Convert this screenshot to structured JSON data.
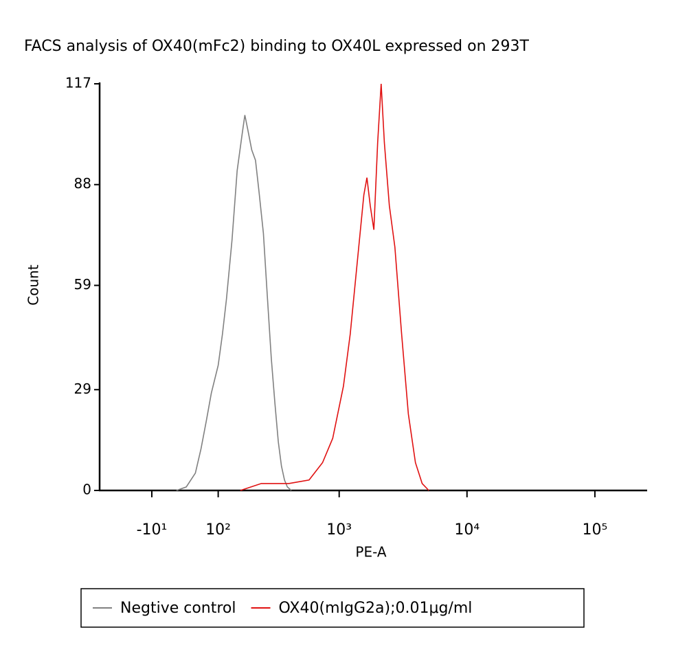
{
  "chart_data": {
    "type": "line",
    "title": "FACS analysis of OX40(mFc2) binding to OX40L expressed on 293T",
    "x_label": "PE-A",
    "y_label": "Count",
    "xscale": "biexponential",
    "xlim": [
      -100,
      250000
    ],
    "xticks": [
      {
        "value": -10,
        "label": "-10¹"
      },
      {
        "value": 100,
        "label": "10²"
      },
      {
        "value": 1000,
        "label": "10³"
      },
      {
        "value": 10000,
        "label": "10⁴"
      },
      {
        "value": 100000,
        "label": "10⁵"
      }
    ],
    "ylim": [
      0,
      117
    ],
    "yticks": [
      0,
      29,
      59,
      88,
      117
    ],
    "legend": "bottom",
    "series": [
      {
        "name": "Negtive control",
        "color": "#808080",
        "x": [
          25,
          40,
          55,
          65,
          75,
          85,
          100,
          110,
          120,
          135,
          150,
          165,
          175,
          185,
          200,
          215,
          230,
          250,
          270,
          290,
          310,
          330,
          350,
          370,
          390,
          420
        ],
        "values": [
          0,
          1,
          5,
          12,
          20,
          28,
          36,
          45,
          55,
          72,
          92,
          102,
          108,
          104,
          98,
          95,
          86,
          74,
          55,
          38,
          25,
          14,
          7,
          3,
          1,
          0
        ]
      },
      {
        "name": "OX40(mIgG2a);0.01μg/ml",
        "color": "#e01010",
        "x": [
          160,
          240,
          400,
          580,
          740,
          890,
          1080,
          1220,
          1380,
          1560,
          1650,
          1750,
          1870,
          2000,
          2130,
          2260,
          2470,
          2730,
          3080,
          3480,
          3950,
          4460,
          5030
        ],
        "values": [
          0,
          2,
          2,
          3,
          8,
          15,
          30,
          45,
          65,
          85,
          90,
          82,
          75,
          100,
          117,
          100,
          82,
          70,
          45,
          22,
          8,
          2,
          0
        ]
      }
    ]
  }
}
